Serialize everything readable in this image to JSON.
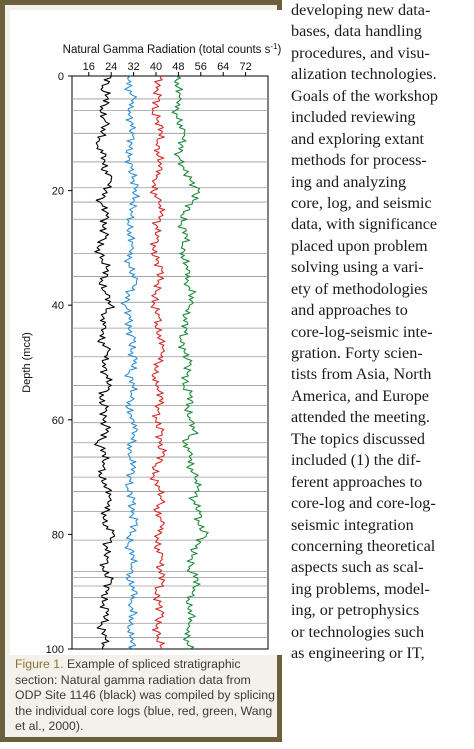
{
  "chart_data": {
    "type": "line",
    "title": "Natural Gamma Radiation (total counts s",
    "title_superscript": "-1",
    "title_suffix": ")",
    "xlabel": "",
    "ylabel": "Depth (mcd)",
    "x_ticks": [
      16,
      24,
      32,
      40,
      48,
      56,
      64,
      72
    ],
    "y_ticks": [
      0,
      20,
      40,
      60,
      80,
      100
    ],
    "xlim": [
      10,
      80
    ],
    "ylim": [
      0,
      100
    ],
    "y_inverted": true,
    "splice_boundaries": [
      4,
      6,
      10,
      15,
      19.5,
      22,
      25,
      31,
      35,
      39.5,
      44,
      49,
      54,
      57.5,
      60.5,
      64,
      66.5,
      70,
      72.5,
      76,
      81,
      86.5,
      87.5,
      89,
      91,
      95.5,
      98
    ],
    "series": [
      {
        "color": "#000000",
        "depth": [
          0,
          2,
          4,
          6,
          8,
          10,
          12,
          14,
          16,
          18,
          20,
          22,
          24,
          26,
          28,
          30,
          32,
          34,
          36,
          38,
          40,
          42,
          44,
          46,
          48,
          50,
          52,
          54,
          56,
          58,
          60,
          62,
          64,
          66,
          68,
          70,
          72,
          74,
          76,
          78,
          80,
          82,
          84,
          86,
          88,
          90,
          92,
          94,
          96,
          98,
          100
        ],
        "values": [
          24,
          21,
          23,
          20,
          22,
          21,
          19,
          22,
          21,
          24,
          22,
          20,
          23,
          21,
          22,
          19,
          21,
          23,
          20,
          22,
          24,
          21,
          22,
          20,
          23,
          21,
          22,
          24,
          20,
          22,
          21,
          23,
          19,
          22,
          21,
          20,
          23,
          24,
          22,
          21,
          25,
          22,
          23,
          21,
          24,
          22,
          21,
          23,
          20,
          22,
          21
        ]
      },
      {
        "color": "#2f8fd6",
        "depth": [
          0,
          2,
          4,
          6,
          8,
          10,
          12,
          14,
          16,
          18,
          20,
          22,
          24,
          26,
          28,
          30,
          32,
          34,
          36,
          38,
          40,
          42,
          44,
          46,
          48,
          50,
          52,
          54,
          56,
          58,
          60,
          62,
          64,
          66,
          68,
          70,
          72,
          74,
          76,
          78,
          80,
          82,
          84,
          86,
          88,
          90,
          92,
          94,
          96,
          98,
          100
        ],
        "values": [
          31,
          30,
          32,
          30,
          31,
          32,
          31,
          30,
          31,
          32,
          33,
          32,
          31,
          30,
          31,
          32,
          30,
          31,
          33,
          30,
          29,
          31,
          30,
          32,
          31,
          33,
          30,
          32,
          31,
          30,
          32,
          33,
          31,
          30,
          32,
          31,
          30,
          32,
          31,
          33,
          31,
          30,
          32,
          31,
          30,
          33,
          31,
          32,
          30,
          31,
          32
        ]
      },
      {
        "color": "#d62828",
        "depth": [
          0,
          2,
          4,
          6,
          8,
          10,
          12,
          14,
          16,
          18,
          20,
          22,
          24,
          26,
          28,
          30,
          32,
          34,
          36,
          38,
          40,
          42,
          44,
          46,
          48,
          50,
          52,
          54,
          56,
          58,
          60,
          62,
          64,
          66,
          68,
          70,
          72,
          74,
          76,
          78,
          80,
          82,
          84,
          86,
          88,
          90,
          92,
          94,
          96,
          98,
          100
        ],
        "values": [
          42,
          40,
          41,
          39,
          41,
          42,
          40,
          41,
          42,
          40,
          39,
          41,
          42,
          40,
          41,
          39,
          40,
          42,
          41,
          40,
          39,
          41,
          40,
          42,
          43,
          41,
          39,
          40,
          42,
          41,
          40,
          42,
          41,
          43,
          40,
          39,
          41,
          42,
          40,
          43,
          41,
          40,
          42,
          41,
          43,
          40,
          41,
          42,
          40,
          41,
          42
        ]
      },
      {
        "color": "#1f8a3a",
        "depth": [
          0,
          2,
          4,
          6,
          8,
          10,
          12,
          14,
          16,
          18,
          20,
          22,
          24,
          26,
          28,
          30,
          32,
          34,
          36,
          38,
          40,
          42,
          44,
          46,
          48,
          50,
          52,
          54,
          56,
          58,
          60,
          62,
          64,
          66,
          68,
          70,
          72,
          74,
          76,
          78,
          80,
          82,
          84,
          86,
          88,
          90,
          92,
          94,
          96,
          98,
          100
        ],
        "values": [
          47,
          48,
          49,
          47,
          48,
          50,
          49,
          48,
          50,
          52,
          55,
          53,
          50,
          49,
          51,
          49,
          50,
          52,
          51,
          53,
          52,
          50,
          51,
          49,
          50,
          52,
          51,
          50,
          53,
          51,
          52,
          54,
          50,
          53,
          52,
          54,
          55,
          53,
          56,
          55,
          58,
          54,
          53,
          52,
          55,
          53,
          51,
          53,
          52,
          51,
          52
        ]
      }
    ]
  },
  "caption": {
    "label": "Figure 1.",
    "text": " Example of spliced stratigraphic section: Natural gamma radiation data from ODP Site 1146 (black) was compiled by splicing the individual core logs (blue, red, green, Wang et al., 2000)."
  },
  "body_lines": [
    "developing new data-",
    "bases, data handling",
    "procedures, and visu-",
    "alization technologies.",
    "Goals of the workshop",
    "included reviewing",
    "and exploring extant",
    "methods for process-",
    "ing and analyzing",
    "core, log, and seismic",
    "data, with significance",
    "placed upon problem",
    "solving using a vari-",
    "ety of methodologies",
    "and approaches to",
    "core-log-seismic inte-",
    "gration. Forty scien-",
    "tists from Asia, North",
    "America, and Europe",
    "attended the meeting.",
    "The topics discussed",
    "included (1) the dif-",
    "ferent approaches to",
    "core-log and core-log-",
    "seismic integration",
    "concerning theoretical",
    "aspects such as scal-",
    "ing problems, model-",
    "ing, or petrophysics",
    "or technologies such",
    "as engineering or IT,"
  ]
}
